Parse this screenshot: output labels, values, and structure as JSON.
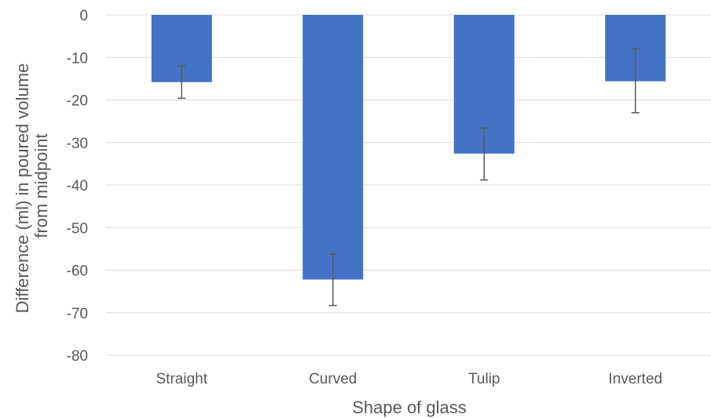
{
  "chart_data": {
    "type": "bar",
    "categories": [
      "Straight",
      "Curved",
      "Tulip",
      "Inverted"
    ],
    "values": [
      -15.8,
      -62.2,
      -32.6,
      -15.6
    ],
    "error_low": [
      -19.6,
      -68.3,
      -38.8,
      -23.0
    ],
    "error_high": [
      -12.0,
      -56.2,
      -26.6,
      -8.0
    ],
    "xlabel": "Shape of glass",
    "ylabel_lines": [
      "Difference (ml) in poured volume",
      "from midpoint"
    ],
    "ylim": [
      -80,
      0
    ],
    "yticks": [
      0,
      -10,
      -20,
      -30,
      -40,
      -50,
      -60,
      -70,
      -80
    ],
    "grid": true,
    "colors": {
      "bar": "#4472c4",
      "grid": "#d9d9d9",
      "text": "#595959",
      "error": "#595959"
    }
  }
}
